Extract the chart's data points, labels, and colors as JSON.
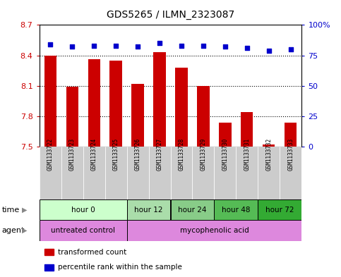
{
  "title": "GDS5265 / ILMN_2323087",
  "samples": [
    "GSM1133722",
    "GSM1133723",
    "GSM1133724",
    "GSM1133725",
    "GSM1133726",
    "GSM1133727",
    "GSM1133728",
    "GSM1133729",
    "GSM1133730",
    "GSM1133731",
    "GSM1133732",
    "GSM1133733"
  ],
  "bar_values": [
    8.4,
    8.09,
    8.36,
    8.35,
    8.12,
    8.43,
    8.28,
    8.1,
    7.74,
    7.84,
    7.52,
    7.74
  ],
  "percentile_values": [
    84,
    82,
    83,
    83,
    82,
    85,
    83,
    83,
    82,
    81,
    79,
    80
  ],
  "ylim_left": [
    7.5,
    8.7
  ],
  "ylim_right": [
    0,
    100
  ],
  "yticks_left": [
    7.5,
    7.8,
    8.1,
    8.4,
    8.7
  ],
  "yticks_right": [
    0,
    25,
    50,
    75,
    100
  ],
  "bar_color": "#cc0000",
  "dot_color": "#0000cc",
  "bar_bottom": 7.5,
  "time_groups": [
    {
      "label": "hour 0",
      "start": 0,
      "end": 4,
      "color": "#ccffcc"
    },
    {
      "label": "hour 12",
      "start": 4,
      "end": 6,
      "color": "#aaddaa"
    },
    {
      "label": "hour 24",
      "start": 6,
      "end": 8,
      "color": "#88cc88"
    },
    {
      "label": "hour 48",
      "start": 8,
      "end": 10,
      "color": "#55bb55"
    },
    {
      "label": "hour 72",
      "start": 10,
      "end": 12,
      "color": "#33aa33"
    }
  ],
  "agent_groups": [
    {
      "label": "untreated control",
      "start": 0,
      "end": 4,
      "color": "#dd88dd"
    },
    {
      "label": "mycophenolic acid",
      "start": 4,
      "end": 12,
      "color": "#dd88dd"
    }
  ],
  "sample_box_color": "#cccccc",
  "legend_bar_label": "transformed count",
  "legend_dot_label": "percentile rank within the sample",
  "ylabel_left_color": "#cc0000",
  "ylabel_right_color": "#0000cc",
  "background_color": "#ffffff"
}
